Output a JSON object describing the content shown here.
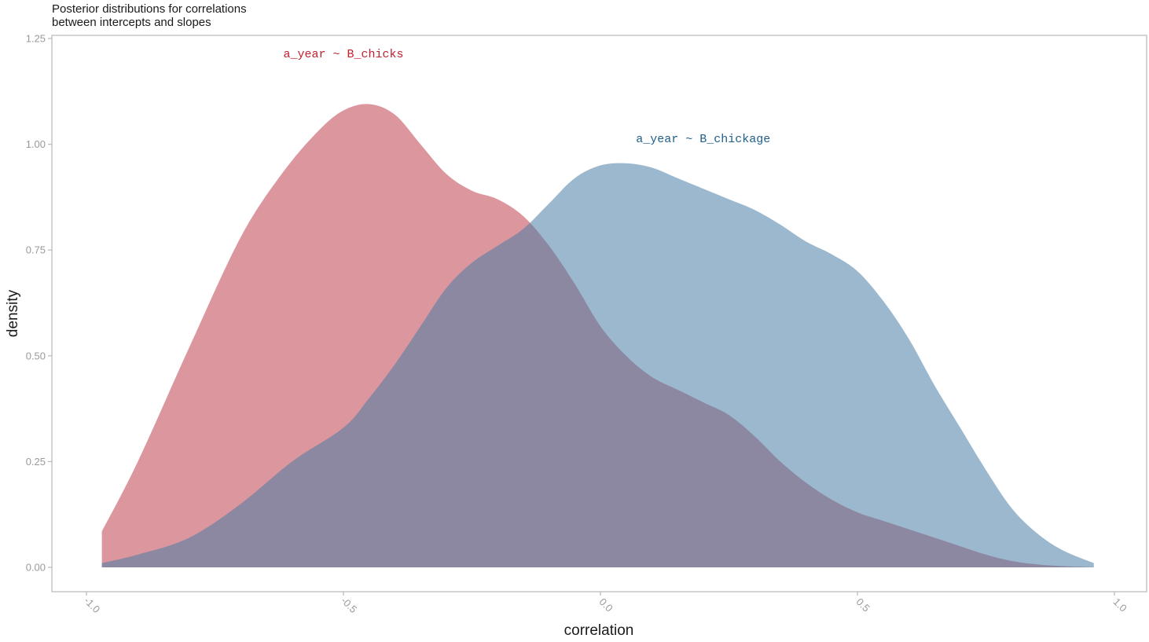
{
  "chart_data": {
    "type": "area",
    "title_lines": [
      "Posterior distributions for correlations",
      "between intercepts and slopes"
    ],
    "xlabel": "correlation",
    "ylabel": "density",
    "xlim": [
      -1.0,
      1.0
    ],
    "ylim": [
      0,
      1.25
    ],
    "x_ticks": [
      -1.0,
      -0.5,
      0.0,
      0.5,
      1.0
    ],
    "x_tick_labels": [
      "-1.0",
      "-0.5",
      "0.0",
      "0.5",
      "1.0"
    ],
    "y_ticks": [
      0,
      0.25,
      0.5,
      0.75,
      1.0,
      1.25
    ],
    "y_tick_labels": [
      "0.00",
      "0.25",
      "0.50",
      "0.75",
      "1.00",
      "1.25"
    ],
    "grid": false,
    "series": [
      {
        "name": "a_year ~ B_chicks",
        "color": "#c0404f",
        "opacity": 0.55,
        "x": [
          -0.97,
          -0.9,
          -0.8,
          -0.7,
          -0.62,
          -0.55,
          -0.5,
          -0.45,
          -0.4,
          -0.35,
          -0.3,
          -0.25,
          -0.2,
          -0.15,
          -0.1,
          -0.05,
          0.0,
          0.05,
          0.1,
          0.15,
          0.2,
          0.25,
          0.3,
          0.35,
          0.4,
          0.45,
          0.5,
          0.55,
          0.6,
          0.65,
          0.7,
          0.75,
          0.8,
          0.85,
          0.9,
          0.96
        ],
        "y": [
          0.085,
          0.25,
          0.52,
          0.78,
          0.93,
          1.03,
          1.08,
          1.095,
          1.07,
          1.0,
          0.93,
          0.89,
          0.87,
          0.83,
          0.76,
          0.67,
          0.57,
          0.5,
          0.45,
          0.42,
          0.39,
          0.36,
          0.31,
          0.25,
          0.2,
          0.16,
          0.13,
          0.11,
          0.09,
          0.07,
          0.05,
          0.03,
          0.015,
          0.007,
          0.003,
          0.0
        ]
      },
      {
        "name": "a_year ~ B_chickage",
        "color": "#4a7ea6",
        "opacity": 0.55,
        "x": [
          -0.97,
          -0.9,
          -0.8,
          -0.7,
          -0.6,
          -0.5,
          -0.45,
          -0.4,
          -0.35,
          -0.3,
          -0.25,
          -0.2,
          -0.15,
          -0.1,
          -0.05,
          0.0,
          0.05,
          0.1,
          0.15,
          0.2,
          0.25,
          0.3,
          0.35,
          0.4,
          0.45,
          0.5,
          0.55,
          0.6,
          0.65,
          0.7,
          0.75,
          0.8,
          0.85,
          0.9,
          0.96
        ],
        "y": [
          0.01,
          0.03,
          0.07,
          0.15,
          0.25,
          0.33,
          0.4,
          0.48,
          0.57,
          0.66,
          0.72,
          0.76,
          0.8,
          0.86,
          0.92,
          0.95,
          0.955,
          0.945,
          0.92,
          0.895,
          0.87,
          0.845,
          0.81,
          0.77,
          0.74,
          0.7,
          0.63,
          0.54,
          0.43,
          0.33,
          0.23,
          0.14,
          0.08,
          0.04,
          0.01
        ]
      }
    ],
    "annotations": [
      {
        "text": "a_year ~ B_chicks",
        "x": -0.5,
        "y": 1.205,
        "color": "#c0202f"
      },
      {
        "text": "a_year ~ B_chickage",
        "x": 0.2,
        "y": 1.005,
        "color": "#1f5f8b"
      }
    ]
  }
}
